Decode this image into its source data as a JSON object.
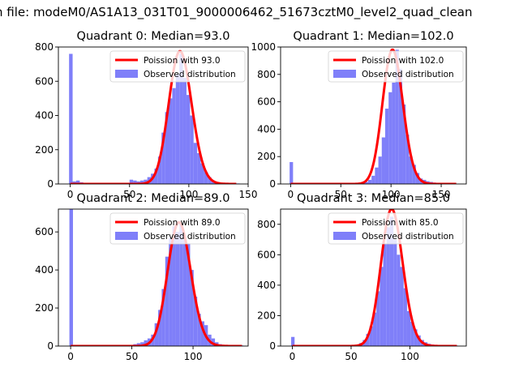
{
  "figure": {
    "suptitle": "n file: modeM0/AS1A13_031T01_9000006462_51673cztM0_level2_quad_clean"
  },
  "colors": {
    "hist": "#7f7ff9",
    "poisson": "#ff0000",
    "legend_border": "#d0d0d0"
  },
  "chart_data": [
    {
      "type": "bar",
      "title": "Quadrant 0: Median=93.0",
      "xlim": [
        -10,
        150
      ],
      "ylim": [
        0,
        800
      ],
      "xticks": [
        0,
        50,
        100,
        150
      ],
      "yticks": [
        0,
        200,
        400,
        600,
        800
      ],
      "legend": {
        "placement": "top-right",
        "entries": [
          "Poission with 93.0",
          "Observed distribution"
        ]
      },
      "series": [
        {
          "name": "Observed distribution",
          "kind": "histogram",
          "bin_width": 3.0,
          "bin_edges_start": [
            -1,
            2,
            5,
            8,
            11,
            14,
            17,
            20,
            23,
            26,
            29,
            32,
            35,
            38,
            41,
            44,
            47,
            50,
            53,
            56,
            59,
            62,
            65,
            68,
            71,
            74,
            77,
            80,
            83,
            86,
            89,
            92,
            95,
            98,
            101,
            104,
            107,
            110,
            113,
            116,
            119,
            122,
            125,
            128,
            131,
            134,
            137,
            140
          ],
          "values": [
            760,
            15,
            20,
            10,
            5,
            5,
            5,
            3,
            3,
            3,
            3,
            3,
            3,
            3,
            3,
            3,
            3,
            25,
            20,
            15,
            20,
            25,
            40,
            60,
            90,
            160,
            300,
            420,
            500,
            560,
            640,
            760,
            620,
            520,
            400,
            240,
            180,
            120,
            70,
            40,
            20,
            10,
            5,
            3,
            3,
            3,
            3,
            3
          ]
        },
        {
          "name": "Poission with 93.0",
          "kind": "poisson",
          "lambda": 93.0,
          "scale": 775,
          "x_range": [
            0,
            140
          ]
        }
      ]
    },
    {
      "type": "bar",
      "title": "Quadrant 1: Median=102.0",
      "xlim": [
        -10,
        175
      ],
      "ylim": [
        0,
        1000
      ],
      "xticks": [
        0,
        50,
        100,
        150
      ],
      "yticks": [
        0,
        200,
        400,
        600,
        800,
        1000
      ],
      "legend": {
        "placement": "top-right",
        "entries": [
          "Poission with 102.0",
          "Observed distribution"
        ]
      },
      "series": [
        {
          "name": "Observed distribution",
          "kind": "histogram",
          "bin_width": 3.4,
          "bin_edges_start": [
            -1,
            2.4,
            5.8,
            9.2,
            12.6,
            16,
            19.4,
            22.8,
            26.2,
            29.6,
            33,
            36.4,
            39.8,
            43.2,
            46.6,
            50,
            53.4,
            56.8,
            60.2,
            63.6,
            67,
            70.4,
            73.8,
            77.2,
            80.6,
            84,
            87.4,
            90.8,
            94.2,
            97.6,
            101,
            104.4,
            107.8,
            111.2,
            114.6,
            118,
            121.4,
            124.8,
            128.2,
            131.6,
            135,
            138.4,
            141.8,
            145.2,
            148.6,
            152,
            155.4,
            158.8,
            162.2
          ],
          "values": [
            160,
            5,
            3,
            3,
            3,
            3,
            3,
            3,
            3,
            3,
            3,
            3,
            3,
            3,
            3,
            3,
            3,
            3,
            3,
            5,
            8,
            10,
            15,
            30,
            60,
            120,
            200,
            340,
            550,
            670,
            740,
            980,
            840,
            580,
            360,
            200,
            140,
            80,
            40,
            30,
            20,
            15,
            10,
            5,
            3,
            3,
            3,
            3,
            3
          ]
        },
        {
          "name": "Poission with 102.0",
          "kind": "poisson",
          "lambda": 102.0,
          "scale": 980,
          "x_range": [
            0,
            165
          ]
        }
      ]
    },
    {
      "type": "bar",
      "title": "Quadrant 2: Median=89.0",
      "xlim": [
        -10,
        145
      ],
      "ylim": [
        0,
        720
      ],
      "xticks": [
        0,
        50,
        100
      ],
      "yticks": [
        0,
        200,
        400,
        600
      ],
      "legend": {
        "placement": "top-right",
        "entries": [
          "Poission with 89.0",
          "Observed distribution"
        ]
      },
      "series": [
        {
          "name": "Observed distribution",
          "kind": "histogram",
          "bin_width": 2.9,
          "bin_edges_start": [
            -1,
            1.9,
            4.8,
            7.7,
            10.6,
            13.5,
            16.4,
            19.3,
            22.2,
            25.1,
            28,
            30.9,
            33.8,
            36.7,
            39.6,
            42.5,
            45.4,
            48.3,
            51.2,
            54.1,
            57,
            59.9,
            62.8,
            65.7,
            68.6,
            71.5,
            74.4,
            77.3,
            80.2,
            83.1,
            86,
            88.9,
            91.8,
            94.7,
            97.6,
            100.5,
            103.4,
            106.3,
            109.2,
            112.1,
            115,
            117.9,
            120.8,
            123.7,
            126.6,
            129.5,
            132.4,
            135.3,
            138.2
          ],
          "values": [
            720,
            3,
            3,
            3,
            3,
            3,
            3,
            3,
            3,
            3,
            3,
            3,
            3,
            3,
            3,
            3,
            3,
            5,
            10,
            15,
            20,
            30,
            40,
            60,
            120,
            190,
            300,
            470,
            570,
            630,
            600,
            640,
            560,
            540,
            400,
            260,
            170,
            130,
            110,
            60,
            40,
            20,
            10,
            5,
            3,
            3,
            3,
            3,
            3
          ]
        },
        {
          "name": "Poission with 89.0",
          "kind": "poisson",
          "lambda": 89.0,
          "scale": 650,
          "x_range": [
            0,
            140
          ]
        }
      ]
    },
    {
      "type": "bar",
      "title": "Quadrant 3: Median=85.0",
      "xlim": [
        -10,
        148
      ],
      "ylim": [
        0,
        900
      ],
      "xticks": [
        0,
        50,
        100
      ],
      "yticks": [
        0,
        200,
        400,
        600,
        800
      ],
      "legend": {
        "placement": "top-right",
        "entries": [
          "Poission with 85.0",
          "Observed distribution"
        ]
      },
      "series": [
        {
          "name": "Observed distribution",
          "kind": "histogram",
          "bin_width": 2.9,
          "bin_edges_start": [
            -1,
            1.9,
            4.8,
            7.7,
            10.6,
            13.5,
            16.4,
            19.3,
            22.2,
            25.1,
            28,
            30.9,
            33.8,
            36.7,
            39.6,
            42.5,
            45.4,
            48.3,
            51.2,
            54.1,
            57,
            59.9,
            62.8,
            65.7,
            68.6,
            71.5,
            74.4,
            77.3,
            80.2,
            83.1,
            86,
            88.9,
            91.8,
            94.7,
            97.6,
            100.5,
            103.4,
            106.3,
            109.2,
            112.1,
            115,
            117.9,
            120.8,
            123.7,
            126.6,
            129.5,
            132.4,
            135.3,
            138.2
          ],
          "values": [
            60,
            5,
            3,
            3,
            3,
            3,
            3,
            3,
            3,
            3,
            3,
            3,
            3,
            3,
            3,
            3,
            3,
            3,
            5,
            10,
            20,
            40,
            80,
            130,
            220,
            360,
            520,
            670,
            780,
            850,
            700,
            600,
            520,
            380,
            230,
            160,
            110,
            70,
            40,
            25,
            15,
            10,
            5,
            3,
            3,
            3,
            3,
            3,
            3
          ]
        },
        {
          "name": "Poission with 85.0",
          "kind": "poisson",
          "lambda": 85.0,
          "scale": 900,
          "x_range": [
            0,
            140
          ]
        }
      ]
    }
  ]
}
